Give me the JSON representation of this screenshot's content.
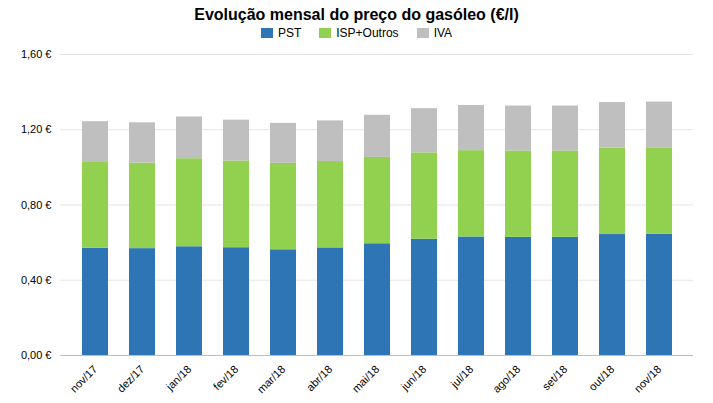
{
  "chart_data": {
    "type": "bar",
    "stacked": true,
    "title": "Evolução mensal do preço do gasóleo (€/l)",
    "categories": [
      "nov/17",
      "dez/17",
      "jan/18",
      "fev/18",
      "mar/18",
      "abr/18",
      "mai/18",
      "jun/18",
      "jul/18",
      "ago/18",
      "set/18",
      "out/18",
      "nov/18"
    ],
    "series": [
      {
        "name": "PST",
        "color": "#2E75B6",
        "values": [
          0.57,
          0.568,
          0.578,
          0.573,
          0.562,
          0.572,
          0.594,
          0.618,
          0.63,
          0.628,
          0.628,
          0.643,
          0.645
        ]
      },
      {
        "name": "ISP+Outros",
        "color": "#92D050",
        "values": [
          0.456,
          0.455,
          0.468,
          0.461,
          0.459,
          0.459,
          0.459,
          0.459,
          0.459,
          0.459,
          0.459,
          0.459,
          0.459
        ]
      },
      {
        "name": "IVA",
        "color": "#BFBFBF",
        "values": [
          0.217,
          0.214,
          0.222,
          0.217,
          0.213,
          0.216,
          0.224,
          0.235,
          0.24,
          0.239,
          0.239,
          0.243,
          0.243
        ]
      }
    ],
    "ylim": [
      0,
      1.6
    ],
    "yticks": [
      {
        "value": 0.0,
        "label": "0,00 €"
      },
      {
        "value": 0.4,
        "label": "0,40 €"
      },
      {
        "value": 0.8,
        "label": "0,80 €"
      },
      {
        "value": 1.2,
        "label": "1,20 €"
      },
      {
        "value": 1.6,
        "label": "1,60 €"
      }
    ],
    "grid": true,
    "legend": "top"
  }
}
